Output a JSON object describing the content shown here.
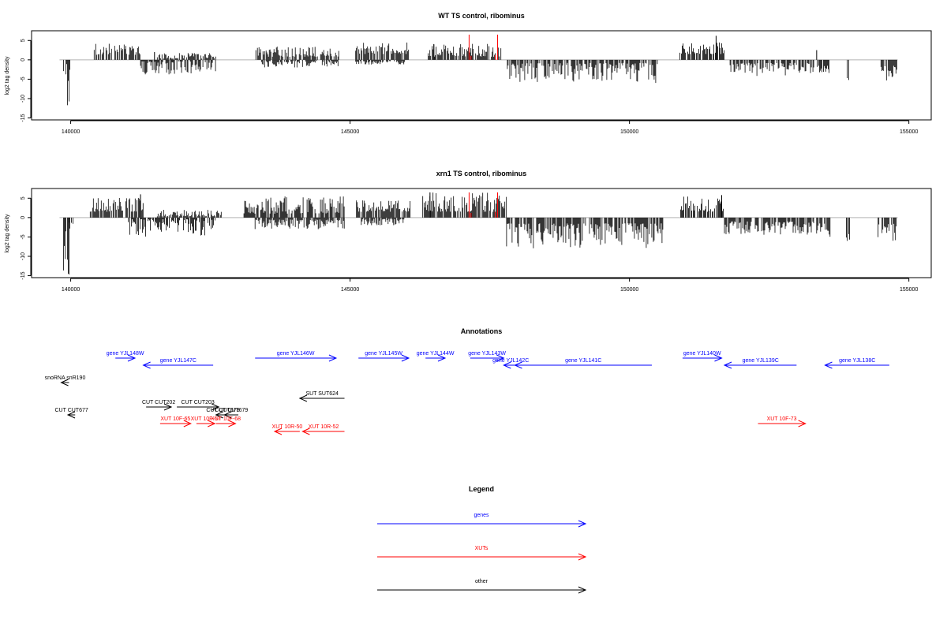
{
  "chart_data": [
    {
      "type": "bar",
      "title": "WT TS control, ribominus",
      "ylabel": "log2 tag density",
      "xlim": [
        139300,
        155400
      ],
      "ylim": [
        -15.5,
        7.5
      ],
      "xticks": [
        140000,
        145000,
        150000,
        155000
      ],
      "xtick_labels": [
        "140000",
        "145000",
        "150000",
        "155000"
      ],
      "yticks": [
        5,
        0,
        -5,
        -10,
        -15
      ],
      "ytick_labels": [
        "5",
        "0",
        "-5",
        "-10",
        "-15"
      ],
      "baseline_x_range": [
        139800,
        154800
      ],
      "regions": [
        {
          "x0": 139870,
          "x1": 139970,
          "lo": -14,
          "hi": -1,
          "sign": -1,
          "seed": 11
        },
        {
          "x0": 139970,
          "x1": 140020,
          "lo": -3,
          "hi": -0.5,
          "sign": -1,
          "seed": 12
        },
        {
          "x0": 140420,
          "x1": 141250,
          "lo": 1.3,
          "hi": 4.2,
          "sign": 1,
          "seed": 13
        },
        {
          "x0": 141250,
          "x1": 142600,
          "lo": 0.4,
          "hi": 3.8,
          "sign": -1,
          "seed": 14
        },
        {
          "x0": 141550,
          "x1": 142600,
          "lo": 0.3,
          "hi": 1.8,
          "sign": 1,
          "seed": 15
        },
        {
          "x0": 143300,
          "x1": 144800,
          "lo": 0.8,
          "hi": 3.5,
          "sign": 1,
          "seed": 16
        },
        {
          "x0": 143400,
          "x1": 144800,
          "lo": 0.3,
          "hi": 2.0,
          "sign": -1,
          "seed": 17
        },
        {
          "x0": 145100,
          "x1": 146050,
          "lo": 1.5,
          "hi": 4.5,
          "sign": 1,
          "seed": 18
        },
        {
          "x0": 145100,
          "x1": 146000,
          "lo": 0.3,
          "hi": 1.2,
          "sign": -1,
          "seed": 19
        },
        {
          "x0": 146400,
          "x1": 147700,
          "lo": 0.8,
          "hi": 4.2,
          "sign": 1,
          "seed": 20
        },
        {
          "x0": 147800,
          "x1": 150500,
          "lo": 0.8,
          "hi": 6.0,
          "sign": -1,
          "seed": 21
        },
        {
          "x0": 150900,
          "x1": 151700,
          "lo": 1.5,
          "hi": 4.5,
          "sign": 1,
          "seed": 22
        },
        {
          "x0": 151800,
          "x1": 153300,
          "lo": 0.8,
          "hi": 4.5,
          "sign": -1,
          "seed": 23
        },
        {
          "x0": 153360,
          "x1": 153580,
          "lo": 1.5,
          "hi": 5.0,
          "sign": -1,
          "seed": 24
        },
        {
          "x0": 153880,
          "x1": 153950,
          "lo": 3,
          "hi": 5.5,
          "sign": -1,
          "seed": 25
        },
        {
          "x0": 154500,
          "x1": 154800,
          "lo": 1.5,
          "hi": 5.8,
          "sign": -1,
          "seed": 26
        }
      ],
      "spikes": [
        {
          "x": 141500,
          "y": 2
        },
        {
          "x": 151550,
          "y": 6.2
        },
        {
          "x": 146500,
          "y": 4
        },
        {
          "x": 153350,
          "y": 2.5
        }
      ],
      "red_spikes": [
        {
          "x": 147130,
          "y": 6.5
        },
        {
          "x": 147165,
          "y": 1.0
        },
        {
          "x": 147640,
          "y": 6.5
        },
        {
          "x": 147600,
          "y": 1.2
        }
      ]
    },
    {
      "type": "bar",
      "title": "xrn1 TS control, ribominus",
      "ylabel": "log2 tag density",
      "xlim": [
        139300,
        155400
      ],
      "ylim": [
        -15.5,
        7.5
      ],
      "xticks": [
        140000,
        145000,
        150000,
        155000
      ],
      "xtick_labels": [
        "140000",
        "145000",
        "150000",
        "155000"
      ],
      "yticks": [
        5,
        0,
        -5,
        -10,
        -15
      ],
      "ytick_labels": [
        "5",
        "0",
        "-5",
        "-10",
        "-15"
      ],
      "baseline_x_range": [
        139800,
        154800
      ],
      "regions": [
        {
          "x0": 139870,
          "x1": 139970,
          "lo": -15,
          "hi": -1,
          "sign": -1,
          "seed": 31
        },
        {
          "x0": 139970,
          "x1": 140050,
          "lo": -3,
          "hi": -0.5,
          "sign": -1,
          "seed": 32
        },
        {
          "x0": 140350,
          "x1": 141300,
          "lo": 1.5,
          "hi": 5.5,
          "sign": 1,
          "seed": 33
        },
        {
          "x0": 141000,
          "x1": 142600,
          "lo": 0.4,
          "hi": 5.0,
          "sign": -1,
          "seed": 34
        },
        {
          "x0": 141550,
          "x1": 142700,
          "lo": 0.3,
          "hi": 2.0,
          "sign": 1,
          "seed": 35
        },
        {
          "x0": 143100,
          "x1": 144900,
          "lo": 1.0,
          "hi": 5.5,
          "sign": 1,
          "seed": 36
        },
        {
          "x0": 143300,
          "x1": 144900,
          "lo": 0.5,
          "hi": 3.0,
          "sign": -1,
          "seed": 37
        },
        {
          "x0": 145100,
          "x1": 146100,
          "lo": 1.5,
          "hi": 4.5,
          "sign": 1,
          "seed": 38
        },
        {
          "x0": 145200,
          "x1": 146000,
          "lo": 0.3,
          "hi": 2.0,
          "sign": -1,
          "seed": 39
        },
        {
          "x0": 146300,
          "x1": 147800,
          "lo": 1.5,
          "hi": 6.5,
          "sign": 1,
          "seed": 40
        },
        {
          "x0": 147800,
          "x1": 150600,
          "lo": 1.5,
          "hi": 8.0,
          "sign": -1,
          "seed": 41
        },
        {
          "x0": 150900,
          "x1": 151700,
          "lo": 1.5,
          "hi": 5.5,
          "sign": 1,
          "seed": 42
        },
        {
          "x0": 151700,
          "x1": 153300,
          "lo": 1.0,
          "hi": 4.5,
          "sign": -1,
          "seed": 43
        },
        {
          "x0": 153350,
          "x1": 153600,
          "lo": 1.5,
          "hi": 5.0,
          "sign": -1,
          "seed": 44
        },
        {
          "x0": 153880,
          "x1": 153950,
          "lo": 3,
          "hi": 6.5,
          "sign": -1,
          "seed": 45
        },
        {
          "x0": 154450,
          "x1": 154800,
          "lo": 1.5,
          "hi": 6.5,
          "sign": -1,
          "seed": 46
        }
      ],
      "spikes": [
        {
          "x": 146430,
          "y": 6.5
        },
        {
          "x": 141250,
          "y": 6
        },
        {
          "x": 151650,
          "y": 5.8
        }
      ],
      "red_spikes": [
        {
          "x": 147130,
          "y": 6.5
        },
        {
          "x": 147165,
          "y": 1.2
        },
        {
          "x": 147640,
          "y": 6.5
        },
        {
          "x": 147600,
          "y": 1.5
        }
      ]
    }
  ],
  "annotations": {
    "title": "Annotations",
    "xlim": [
      139300,
      155400
    ],
    "items": [
      {
        "label": "gene YJL148W",
        "color": "blue",
        "dir": "right",
        "x0": 140800,
        "x1": 141150,
        "row": 0
      },
      {
        "label": "gene YJL147C",
        "color": "blue",
        "dir": "left",
        "x0": 141300,
        "x1": 142550,
        "row": 1
      },
      {
        "label": "gene YJL146W",
        "color": "blue",
        "dir": "right",
        "x0": 143300,
        "x1": 144750,
        "row": 0
      },
      {
        "label": "gene YJL145W",
        "color": "blue",
        "dir": "right",
        "x0": 145150,
        "x1": 146050,
        "row": 0
      },
      {
        "label": "gene YJL144W",
        "color": "blue",
        "dir": "right",
        "x0": 146350,
        "x1": 146700,
        "row": 0
      },
      {
        "label": "gene YJL143W",
        "color": "blue",
        "dir": "right",
        "x0": 147150,
        "x1": 147750,
        "row": 0
      },
      {
        "label": "gene YJL142C",
        "color": "blue",
        "dir": "left",
        "x0": 147750,
        "x1": 148000,
        "row": 1
      },
      {
        "label": "gene YJL141C",
        "color": "blue",
        "dir": "left",
        "x0": 147950,
        "x1": 150400,
        "row": 1
      },
      {
        "label": "gene YJL140W",
        "color": "blue",
        "dir": "right",
        "x0": 150950,
        "x1": 151650,
        "row": 0
      },
      {
        "label": "gene YJL139C",
        "color": "blue",
        "dir": "left",
        "x0": 151700,
        "x1": 152990,
        "row": 1
      },
      {
        "label": "gene YJL138C",
        "color": "blue",
        "dir": "left",
        "x0": 153500,
        "x1": 154650,
        "row": 1
      },
      {
        "label": "snoRNA snR190",
        "color": "black",
        "dir": "left",
        "x0": 139830,
        "x1": 139970,
        "row": 2
      },
      {
        "label": "SUT SUT624",
        "color": "black",
        "dir": "left",
        "x0": 144100,
        "x1": 144900,
        "row": 3
      },
      {
        "label": "CUT CUT202",
        "color": "black",
        "dir": "right",
        "x0": 141350,
        "x1": 141800,
        "row": 4
      },
      {
        "label": "CUT CUT203",
        "color": "black",
        "dir": "right",
        "x0": 141900,
        "x1": 142650,
        "row": 4
      },
      {
        "label": "CUT CUT678",
        "color": "black",
        "dir": "left",
        "x0": 142600,
        "x1": 142850,
        "row": 5
      },
      {
        "label": "CUT CUT679",
        "color": "black",
        "dir": "left",
        "x0": 142750,
        "x1": 143000,
        "row": 5
      },
      {
        "label": "CUT CUT677",
        "color": "black",
        "dir": "left",
        "x0": 139950,
        "x1": 140080,
        "row": 5
      },
      {
        "label": "XUT 10F-65",
        "color": "red",
        "dir": "right",
        "x0": 141600,
        "x1": 142150,
        "row": 6
      },
      {
        "label": "XUT 10F-67",
        "color": "red",
        "dir": "right",
        "x0": 142250,
        "x1": 142580,
        "row": 6
      },
      {
        "label": "XUT 10F-68",
        "color": "red",
        "dir": "right",
        "x0": 142600,
        "x1": 142950,
        "row": 6
      },
      {
        "label": "XUT 10R-50",
        "color": "red",
        "dir": "left",
        "x0": 143650,
        "x1": 144100,
        "row": 7
      },
      {
        "label": "XUT 10R-52",
        "color": "red",
        "dir": "left",
        "x0": 144150,
        "x1": 144900,
        "row": 7
      },
      {
        "label": "XUT 10F-73",
        "color": "red",
        "dir": "right",
        "x0": 152300,
        "x1": 153150,
        "row": 6
      }
    ]
  },
  "legend": {
    "title": "Legend",
    "entries": [
      {
        "label": "genes",
        "color": "blue"
      },
      {
        "label": "XUTs",
        "color": "red"
      },
      {
        "label": "other",
        "color": "black"
      }
    ]
  },
  "colors": {
    "blue": "#0000ff",
    "red": "#ff0000",
    "black": "#000000",
    "baseline": "#b3b3b3"
  }
}
